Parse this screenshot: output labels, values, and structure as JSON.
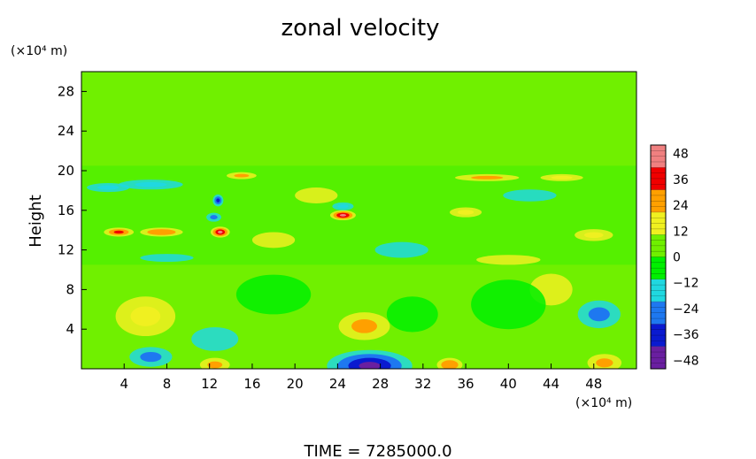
{
  "chart_data": {
    "type": "heatmap",
    "title": "zonal velocity",
    "xlabel": "",
    "ylabel": "Height",
    "x_unit": "(×10⁴ m)",
    "y_unit": "(×10⁴ m)",
    "xlim": [
      0,
      52
    ],
    "ylim": [
      0,
      30
    ],
    "x_ticks": [
      4,
      8,
      12,
      16,
      20,
      24,
      28,
      32,
      36,
      40,
      44,
      48
    ],
    "y_ticks": [
      4,
      8,
      12,
      16,
      20,
      24,
      28
    ],
    "colorbar": {
      "levels": [
        -48,
        -36,
        -24,
        -12,
        0,
        12,
        24,
        36,
        48
      ],
      "vmin": -52,
      "vmax": 52,
      "colors": [
        "#6a1fa0",
        "#0a1ad0",
        "#1e78f0",
        "#20d8e0",
        "#00f000",
        "#70f000",
        "#f0f020",
        "#ffa000",
        "#f00000",
        "#f08080"
      ]
    },
    "grid": false,
    "features": [
      {
        "x": 27,
        "y": 0.3,
        "value": -50,
        "rx": 4.0,
        "ry": 1.6
      },
      {
        "x": 6.5,
        "y": 1.2,
        "value": -28,
        "rx": 2.0,
        "ry": 1.0
      },
      {
        "x": 12.5,
        "y": 3.0,
        "value": -14,
        "rx": 2.2,
        "ry": 1.2
      },
      {
        "x": 48.5,
        "y": 5.5,
        "value": -24,
        "rx": 2.0,
        "ry": 1.4
      },
      {
        "x": 31,
        "y": 5.5,
        "value": -10,
        "rx": 2.4,
        "ry": 1.8
      },
      {
        "x": 26.5,
        "y": 4.3,
        "value": 28,
        "rx": 2.4,
        "ry": 1.4
      },
      {
        "x": 6,
        "y": 5.3,
        "value": 18,
        "rx": 2.8,
        "ry": 2.0
      },
      {
        "x": 34.5,
        "y": 0.4,
        "value": 30,
        "rx": 1.2,
        "ry": 0.7
      },
      {
        "x": 12.5,
        "y": 0.4,
        "value": 24,
        "rx": 1.4,
        "ry": 0.7
      },
      {
        "x": 49,
        "y": 0.6,
        "value": 24,
        "rx": 1.6,
        "ry": 0.9
      },
      {
        "x": 44,
        "y": 8,
        "value": 16,
        "rx": 2.0,
        "ry": 1.6
      },
      {
        "x": 40,
        "y": 6.5,
        "value": -8,
        "rx": 3.5,
        "ry": 2.5
      },
      {
        "x": 18,
        "y": 7.5,
        "value": -8,
        "rx": 3.5,
        "ry": 2.0
      },
      {
        "x": 3.5,
        "y": 13.8,
        "value": 32,
        "rx": 1.4,
        "ry": 0.45
      },
      {
        "x": 7.5,
        "y": 13.8,
        "value": 30,
        "rx": 2.0,
        "ry": 0.45
      },
      {
        "x": 13,
        "y": 13.8,
        "value": 46,
        "rx": 0.9,
        "ry": 0.55
      },
      {
        "x": 12.4,
        "y": 15.3,
        "value": -26,
        "rx": 0.7,
        "ry": 0.45
      },
      {
        "x": 12.8,
        "y": 17.0,
        "value": -32,
        "rx": 0.5,
        "ry": 0.6
      },
      {
        "x": 24.5,
        "y": 15.5,
        "value": 42,
        "rx": 1.2,
        "ry": 0.5
      },
      {
        "x": 24.5,
        "y": 16.4,
        "value": -18,
        "rx": 1.0,
        "ry": 0.4
      },
      {
        "x": 6.5,
        "y": 18.6,
        "value": -20,
        "rx": 3.0,
        "ry": 0.5
      },
      {
        "x": 2.5,
        "y": 18.3,
        "value": -18,
        "rx": 2.0,
        "ry": 0.45
      },
      {
        "x": 15,
        "y": 19.5,
        "value": 26,
        "rx": 1.4,
        "ry": 0.35
      },
      {
        "x": 38,
        "y": 19.3,
        "value": 28,
        "rx": 3.0,
        "ry": 0.35
      },
      {
        "x": 45,
        "y": 19.3,
        "value": 18,
        "rx": 2.0,
        "ry": 0.35
      },
      {
        "x": 48,
        "y": 13.5,
        "value": 20,
        "rx": 1.8,
        "ry": 0.6
      },
      {
        "x": 42,
        "y": 17.5,
        "value": -14,
        "rx": 2.5,
        "ry": 0.6
      },
      {
        "x": 30,
        "y": 12.0,
        "value": -12,
        "rx": 2.5,
        "ry": 0.8
      },
      {
        "x": 22,
        "y": 17.5,
        "value": 16,
        "rx": 2.0,
        "ry": 0.8
      },
      {
        "x": 36,
        "y": 15.8,
        "value": 20,
        "rx": 1.5,
        "ry": 0.5
      },
      {
        "x": 18,
        "y": 13.0,
        "value": 14,
        "rx": 2.0,
        "ry": 0.8
      },
      {
        "x": 8,
        "y": 11.2,
        "value": -14,
        "rx": 2.5,
        "ry": 0.4
      },
      {
        "x": 40,
        "y": 11.0,
        "value": 14,
        "rx": 3.0,
        "ry": 0.5
      }
    ]
  },
  "footer": {
    "time_label": "TIME  =  7285000.0"
  }
}
